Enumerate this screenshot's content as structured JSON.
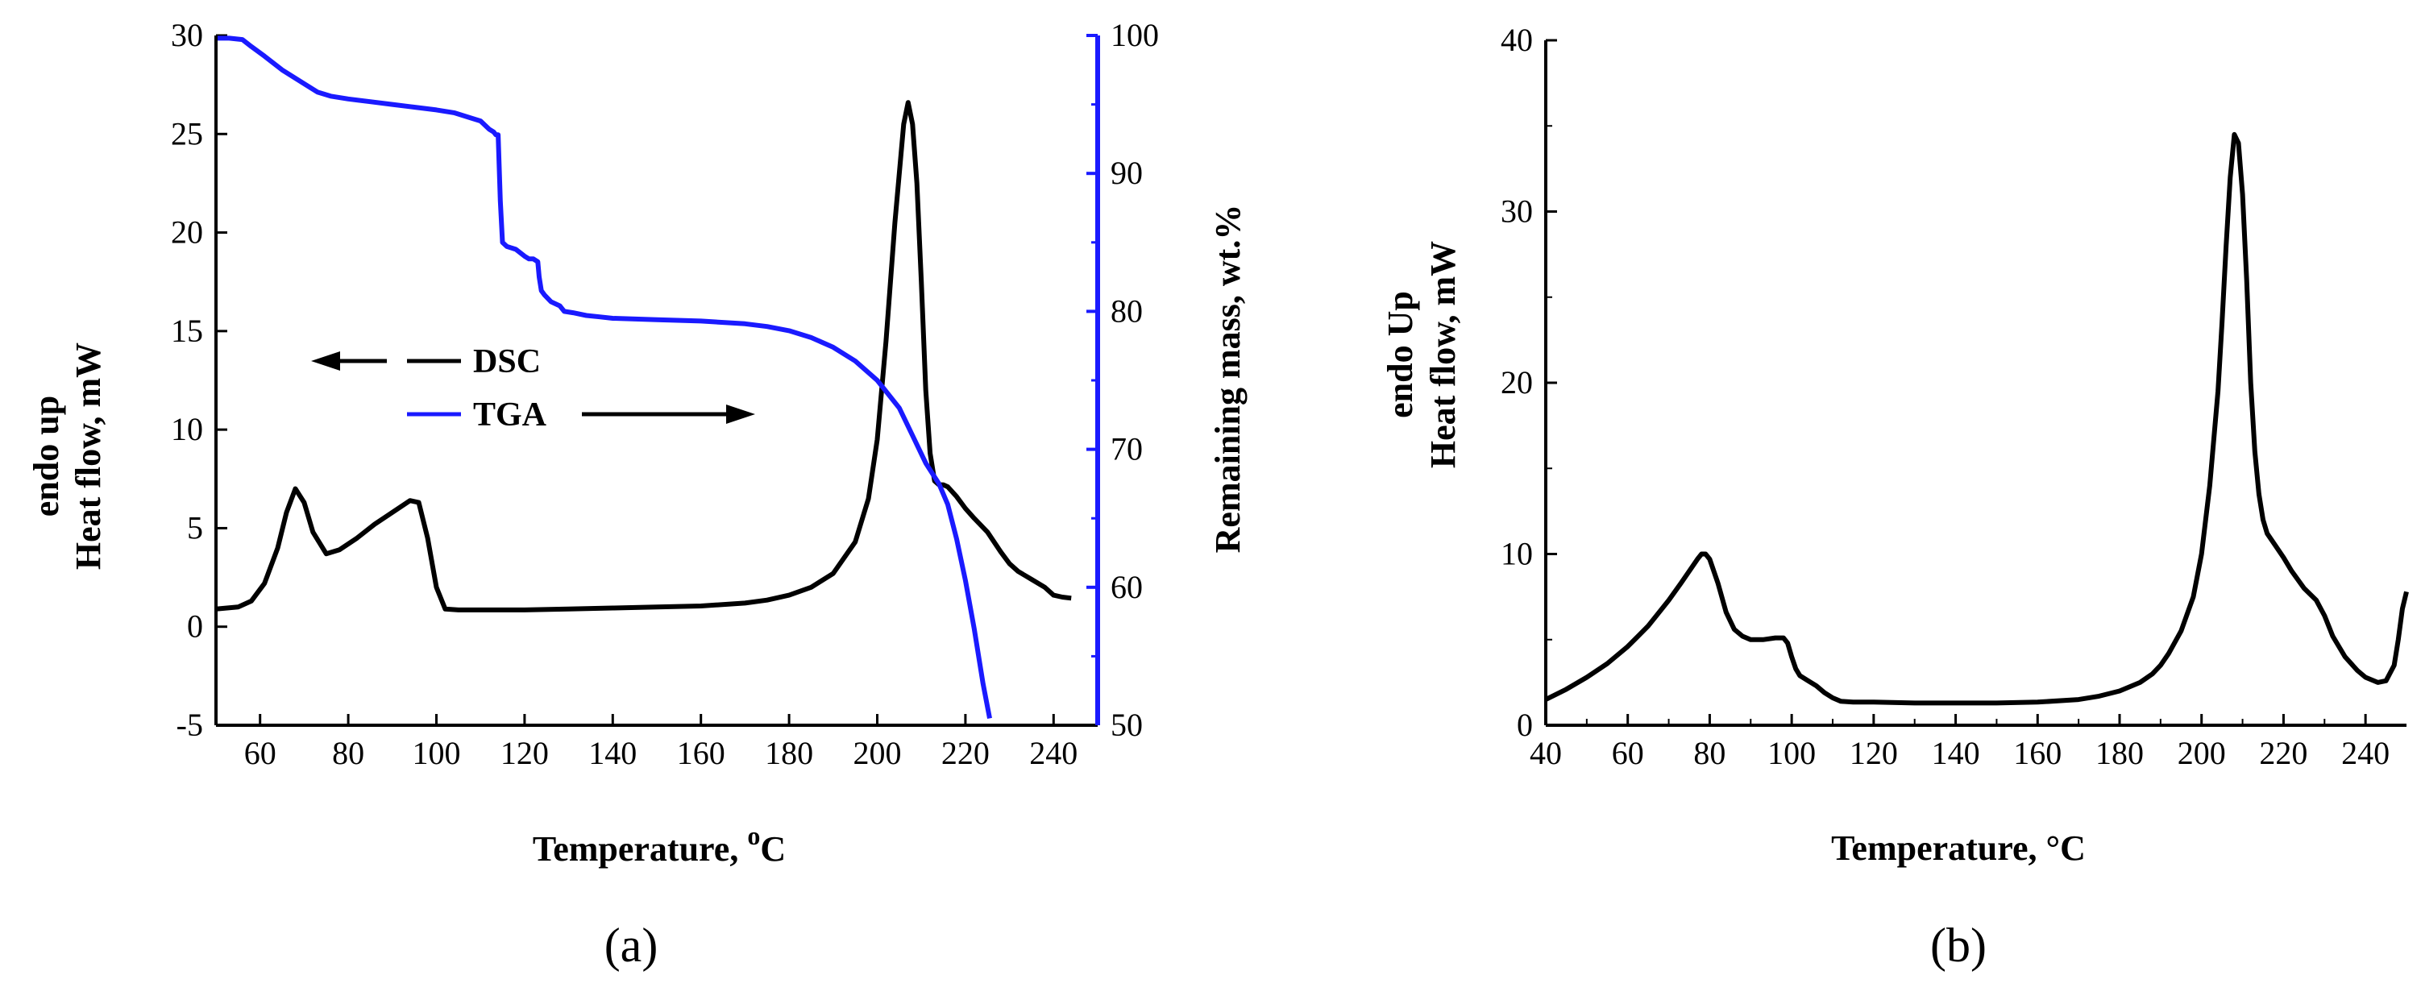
{
  "colors": {
    "dsc": "#000000",
    "tga": "#1a1aff",
    "axis": "#000000"
  },
  "chart_data": [
    {
      "panel_label": "(a)",
      "type": "line",
      "xlabel": "Temperature, ",
      "xlabel_unit_sup": "o",
      "xlabel_unit": "C",
      "ylabel_line1": "endo up",
      "ylabel_line2": "Heat flow, mW",
      "y2label": "Remaining mass, wt.%",
      "xlim": [
        50,
        250
      ],
      "ylim": [
        -5,
        30
      ],
      "y2lim": [
        50,
        100
      ],
      "xticks": [
        60,
        80,
        100,
        120,
        140,
        160,
        180,
        200,
        220,
        240
      ],
      "yticks": [
        -5,
        0,
        5,
        10,
        15,
        20,
        25,
        30
      ],
      "y2ticks": [
        50,
        60,
        70,
        80,
        90,
        100
      ],
      "legend": [
        {
          "label": "DSC",
          "series": "DSC",
          "arrow": "left"
        },
        {
          "label": "TGA",
          "series": "TGA",
          "arrow": "right"
        }
      ],
      "series": [
        {
          "name": "DSC",
          "axis": "left",
          "x": [
            50,
            55,
            58,
            61,
            64,
            66,
            68,
            70,
            72,
            75,
            78,
            82,
            86,
            90,
            94,
            96,
            98,
            100,
            102,
            105,
            110,
            120,
            130,
            140,
            150,
            160,
            170,
            175,
            180,
            185,
            190,
            195,
            198,
            200,
            202,
            204,
            206,
            207,
            208,
            209,
            210,
            211,
            212,
            213,
            214,
            215,
            216,
            218,
            220,
            222,
            225,
            228,
            230,
            232,
            235,
            238,
            240,
            242,
            244
          ],
          "y": [
            0.9,
            1.0,
            1.3,
            2.2,
            4.0,
            5.8,
            7.0,
            6.3,
            4.8,
            3.7,
            3.9,
            4.5,
            5.2,
            5.8,
            6.4,
            6.3,
            4.5,
            2.0,
            0.9,
            0.85,
            0.85,
            0.85,
            0.9,
            0.95,
            1.0,
            1.05,
            1.2,
            1.35,
            1.6,
            2.0,
            2.7,
            4.3,
            6.5,
            9.5,
            14.5,
            20.5,
            25.5,
            26.6,
            25.5,
            22.5,
            17.5,
            12.0,
            8.8,
            7.4,
            7.2,
            7.2,
            7.1,
            6.6,
            6.0,
            5.5,
            4.8,
            3.8,
            3.2,
            2.8,
            2.4,
            2.0,
            1.6,
            1.5,
            1.45
          ]
        },
        {
          "name": "TGA",
          "axis": "right",
          "x": [
            50,
            53,
            56,
            58,
            61,
            65,
            70,
            73,
            76,
            80,
            85,
            90,
            95,
            100,
            104,
            108,
            110,
            111,
            112,
            113,
            113.5,
            114,
            114.5,
            115,
            116,
            118,
            120,
            121,
            122,
            123,
            123.3,
            123.8,
            124.5,
            126,
            128,
            129,
            131,
            134,
            137,
            140,
            150,
            160,
            170,
            175,
            180,
            185,
            190,
            195,
            200,
            205,
            208,
            211,
            214,
            216,
            218,
            220,
            222,
            224,
            225.5
          ],
          "y": [
            99.8,
            99.8,
            99.7,
            99.2,
            98.5,
            97.5,
            96.5,
            95.9,
            95.6,
            95.4,
            95.2,
            95.0,
            94.8,
            94.6,
            94.4,
            94.0,
            93.8,
            93.5,
            93.2,
            93.0,
            92.8,
            92.8,
            88.0,
            85.0,
            84.7,
            84.5,
            84.0,
            83.8,
            83.8,
            83.6,
            82.5,
            81.5,
            81.2,
            80.7,
            80.4,
            80.0,
            79.9,
            79.7,
            79.6,
            79.5,
            79.4,
            79.3,
            79.1,
            78.9,
            78.6,
            78.1,
            77.4,
            76.4,
            75.0,
            73.0,
            71.0,
            69.0,
            67.5,
            66.0,
            63.5,
            60.5,
            57.0,
            53.0,
            50.5
          ]
        }
      ]
    },
    {
      "panel_label": "(b)",
      "type": "line",
      "xlabel": "Temperature, ",
      "xlabel_unit": "°C",
      "ylabel_line1": "endo Up",
      "ylabel_line2": "Heat flow, mW",
      "xlim": [
        40,
        250
      ],
      "ylim": [
        0,
        40
      ],
      "xticks": [
        40,
        60,
        80,
        100,
        120,
        140,
        160,
        180,
        200,
        220,
        240
      ],
      "yticks": [
        0,
        10,
        20,
        30,
        40
      ],
      "series": [
        {
          "name": "DSC",
          "x": [
            40,
            45,
            50,
            55,
            60,
            65,
            70,
            73,
            75,
            77,
            78,
            79,
            80,
            82,
            84,
            86,
            88,
            90,
            93,
            96,
            98,
            99,
            100,
            101,
            102,
            104,
            106,
            108,
            110,
            112,
            115,
            120,
            130,
            140,
            150,
            160,
            170,
            175,
            180,
            185,
            188,
            190,
            192,
            195,
            198,
            200,
            202,
            204,
            205,
            206,
            207,
            208,
            209,
            210,
            211,
            212,
            213,
            214,
            215,
            216,
            218,
            220,
            222,
            225,
            228,
            230,
            232,
            235,
            238,
            240,
            243,
            245,
            247,
            248,
            249,
            250
          ],
          "y": [
            1.5,
            2.1,
            2.8,
            3.6,
            4.6,
            5.8,
            7.3,
            8.3,
            9.0,
            9.7,
            10.0,
            10.0,
            9.7,
            8.3,
            6.6,
            5.6,
            5.2,
            5.0,
            5.0,
            5.1,
            5.1,
            4.8,
            4.0,
            3.3,
            2.9,
            2.6,
            2.3,
            1.9,
            1.6,
            1.4,
            1.35,
            1.35,
            1.3,
            1.3,
            1.3,
            1.35,
            1.5,
            1.7,
            2.0,
            2.5,
            3.0,
            3.5,
            4.2,
            5.5,
            7.5,
            10.0,
            14.0,
            19.5,
            23.5,
            28.0,
            32.0,
            34.5,
            34.0,
            31.0,
            26.0,
            20.0,
            16.0,
            13.5,
            12.0,
            11.2,
            10.5,
            9.8,
            9.0,
            8.0,
            7.3,
            6.4,
            5.2,
            4.0,
            3.2,
            2.8,
            2.5,
            2.6,
            3.5,
            5.0,
            6.8,
            7.8
          ]
        }
      ]
    }
  ]
}
